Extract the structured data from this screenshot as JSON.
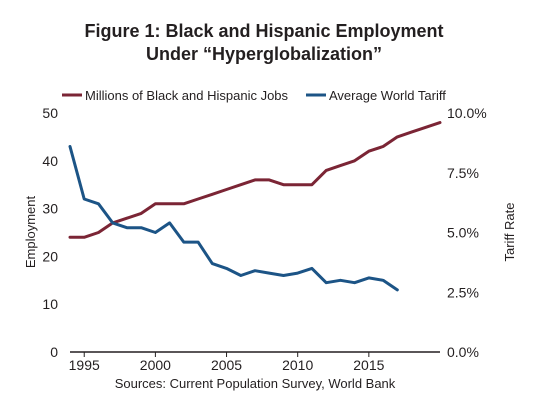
{
  "chart_data": {
    "type": "line",
    "title_line1": "Figure 1: Black and Hispanic Employment",
    "title_line2": "Under “Hyperglobalization”",
    "ylabel_left": "Employment",
    "ylabel_right": "Tariff Rate",
    "source": "Sources: Current Population Survey, World Bank",
    "x_ticks": [
      "1995",
      "2000",
      "2005",
      "2010",
      "2015"
    ],
    "y_left_ticks": [
      "0",
      "10",
      "20",
      "30",
      "40",
      "50"
    ],
    "y_right_ticks": [
      "0.0%",
      "2.5%",
      "5.0%",
      "7.5%",
      "10.0%"
    ],
    "xlim": [
      1994,
      2020
    ],
    "ylim_left": [
      0,
      50
    ],
    "ylim_right": [
      0,
      10
    ],
    "legend_position": "top",
    "grid": false,
    "series": [
      {
        "name": "Millions of Black and Hispanic Jobs",
        "axis": "left",
        "color": "#7b2535",
        "x": [
          1994,
          1995,
          1996,
          1997,
          1998,
          1999,
          2000,
          2001,
          2002,
          2003,
          2004,
          2005,
          2006,
          2007,
          2008,
          2009,
          2010,
          2011,
          2012,
          2013,
          2014,
          2015,
          2016,
          2017,
          2018,
          2019,
          2020
        ],
        "values": [
          24,
          24,
          25,
          27,
          28,
          29,
          31,
          31,
          31,
          32,
          33,
          34,
          35,
          36,
          36,
          35,
          35,
          35,
          38,
          39,
          40,
          42,
          43,
          45,
          46,
          47,
          48
        ]
      },
      {
        "name": "Average World Tariff",
        "axis": "right",
        "color": "#1c5486",
        "x": [
          1994,
          1995,
          1996,
          1997,
          1998,
          1999,
          2000,
          2001,
          2002,
          2003,
          2004,
          2005,
          2006,
          2007,
          2008,
          2009,
          2010,
          2011,
          2012,
          2013,
          2014,
          2015,
          2016,
          2017
        ],
        "values": [
          8.6,
          6.4,
          6.2,
          5.4,
          5.2,
          5.2,
          5.0,
          5.4,
          4.6,
          4.6,
          3.7,
          3.5,
          3.2,
          3.4,
          3.3,
          3.2,
          3.3,
          3.5,
          2.9,
          3.0,
          2.9,
          3.1,
          3.0,
          2.6
        ]
      }
    ]
  }
}
